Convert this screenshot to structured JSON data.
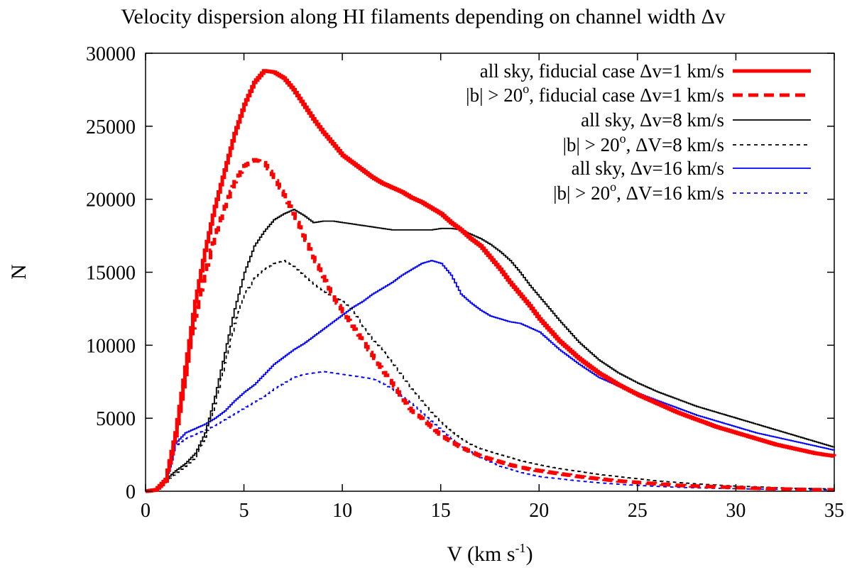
{
  "chart_data": {
    "type": "line",
    "title": "Velocity dispersion along HI filaments depending on channel width Δv",
    "xlabel": "V (km s",
    "xlabel_sup": "-1",
    "xlabel_close": ")",
    "ylabel": "N",
    "xlim": [
      0,
      35
    ],
    "ylim": [
      0,
      30000
    ],
    "xticks": [
      0,
      5,
      10,
      15,
      20,
      25,
      30,
      35
    ],
    "yticks": [
      0,
      5000,
      10000,
      15000,
      20000,
      25000,
      30000
    ],
    "x": [
      0,
      0.5,
      1,
      1.5,
      2,
      2.5,
      3,
      3.5,
      4,
      4.5,
      5,
      5.5,
      6,
      6.5,
      7,
      7.5,
      8,
      8.5,
      9,
      9.5,
      10,
      10.5,
      11,
      11.5,
      12,
      12.5,
      13,
      13.5,
      14,
      14.5,
      15,
      15.5,
      16,
      16.5,
      17,
      17.5,
      18,
      18.5,
      19,
      19.5,
      20,
      21,
      22,
      23,
      24,
      25,
      26,
      27,
      28,
      29,
      30,
      31,
      32,
      33,
      34,
      35
    ],
    "series": [
      {
        "name": "all sky, fiducial case Δv=1 km/s",
        "label_main": "all sky, fiducial case Δv=1 km/s",
        "color": "#ff0000",
        "width": 5,
        "dash": "",
        "values": [
          0,
          100,
          800,
          4000,
          8500,
          13000,
          16500,
          19500,
          22000,
          24500,
          26500,
          28000,
          28800,
          28700,
          28300,
          27500,
          26500,
          25500,
          24600,
          23800,
          23000,
          22500,
          22000,
          21500,
          21100,
          20800,
          20500,
          20100,
          19800,
          19400,
          19000,
          18400,
          17900,
          17300,
          16800,
          16000,
          15200,
          14300,
          13500,
          12700,
          11800,
          10300,
          9100,
          8100,
          7300,
          6600,
          6000,
          5400,
          4900,
          4400,
          4000,
          3600,
          3200,
          2900,
          2600,
          2400
        ]
      },
      {
        "name": "|b| > 20o, fiducial case Δv=1 km/s",
        "label_pre": "|b| > 20",
        "label_sup": "o",
        "label_post": ", fiducial case Δv=1 km/s",
        "color": "#ff0000",
        "width": 5,
        "dash": "14,8",
        "values": [
          0,
          100,
          700,
          3800,
          8000,
          12000,
          15000,
          17500,
          19500,
          21200,
          22300,
          22700,
          22500,
          21500,
          20300,
          19000,
          17500,
          16000,
          14700,
          13300,
          12300,
          11300,
          10300,
          9300,
          8300,
          7400,
          6400,
          5500,
          5000,
          4400,
          3800,
          3400,
          3000,
          2700,
          2400,
          2200,
          2000,
          1800,
          1650,
          1500,
          1400,
          1200,
          1000,
          850,
          700,
          600,
          500,
          400,
          350,
          300,
          250,
          200,
          160,
          130,
          110,
          100
        ]
      },
      {
        "name": "all sky, Δv=8 km/s",
        "label_main": "all sky, Δv=8 km/s",
        "color": "#000000",
        "width": 1.8,
        "dash": "",
        "values": [
          0,
          100,
          800,
          1400,
          1900,
          2600,
          4000,
          6500,
          9500,
          12500,
          15000,
          16800,
          17800,
          18600,
          19000,
          19300,
          18900,
          18400,
          18500,
          18500,
          18400,
          18300,
          18200,
          18100,
          18000,
          17900,
          17900,
          17900,
          17900,
          17900,
          18000,
          18000,
          17900,
          17600,
          17300,
          16900,
          16400,
          15800,
          15000,
          14100,
          13300,
          11700,
          10200,
          9000,
          8100,
          7400,
          6800,
          6300,
          5800,
          5400,
          5000,
          4600,
          4200,
          3800,
          3400,
          3000
        ]
      },
      {
        "name": "|b| > 20o, ΔV=8 km/s",
        "label_pre": "|b| > 20",
        "label_sup": "o",
        "label_post": ", ΔV=8 km/s",
        "color": "#000000",
        "width": 1.8,
        "dash": "5,5",
        "values": [
          0,
          100,
          700,
          1200,
          1700,
          2300,
          3700,
          6000,
          8800,
          11500,
          13500,
          14600,
          15200,
          15600,
          15800,
          15400,
          14800,
          14200,
          13700,
          13300,
          13000,
          12400,
          11300,
          10400,
          9700,
          8800,
          7900,
          7000,
          6200,
          5400,
          4700,
          4100,
          3600,
          3200,
          2900,
          2700,
          2500,
          2300,
          2100,
          1950,
          1800,
          1550,
          1350,
          1150,
          1000,
          850,
          700,
          600,
          500,
          420,
          350,
          300,
          250,
          200,
          180,
          150
        ]
      },
      {
        "name": "all sky, Δv=16 km/s",
        "label_main": "all sky, Δv=16 km/s",
        "color": "#0000ff",
        "width": 1.8,
        "dash": "",
        "values": [
          0,
          100,
          700,
          3300,
          4000,
          4300,
          4600,
          5000,
          5500,
          6200,
          6800,
          7300,
          8000,
          8700,
          9200,
          9700,
          10100,
          10600,
          11100,
          11600,
          12100,
          12600,
          13000,
          13500,
          13900,
          14300,
          14800,
          15200,
          15600,
          15800,
          15600,
          14800,
          13500,
          12900,
          12400,
          12000,
          11800,
          11600,
          11500,
          11200,
          10900,
          9700,
          8700,
          7800,
          7200,
          6700,
          6200,
          5700,
          5200,
          4800,
          4400,
          4000,
          3700,
          3400,
          3100,
          2800
        ]
      },
      {
        "name": "|b| > 20o, ΔV=16 km/s",
        "label_pre": "|b| > 20",
        "label_sup": "o",
        "label_post": ", ΔV=16 km/s",
        "color": "#0000ff",
        "width": 1.8,
        "dash": "5,5",
        "values": [
          0,
          100,
          700,
          3100,
          3600,
          3900,
          4200,
          4500,
          4900,
          5300,
          5700,
          6100,
          6500,
          7000,
          7400,
          7800,
          8000,
          8100,
          8200,
          8100,
          8000,
          7900,
          7800,
          7700,
          7400,
          7000,
          6500,
          6000,
          5400,
          4800,
          4200,
          3600,
          3100,
          2700,
          2300,
          2000,
          1700,
          1500,
          1300,
          1150,
          1000,
          850,
          700,
          580,
          480,
          400,
          330,
          270,
          230,
          200,
          170,
          150,
          130,
          110,
          100,
          90
        ]
      }
    ],
    "legend_position": "top-right"
  }
}
